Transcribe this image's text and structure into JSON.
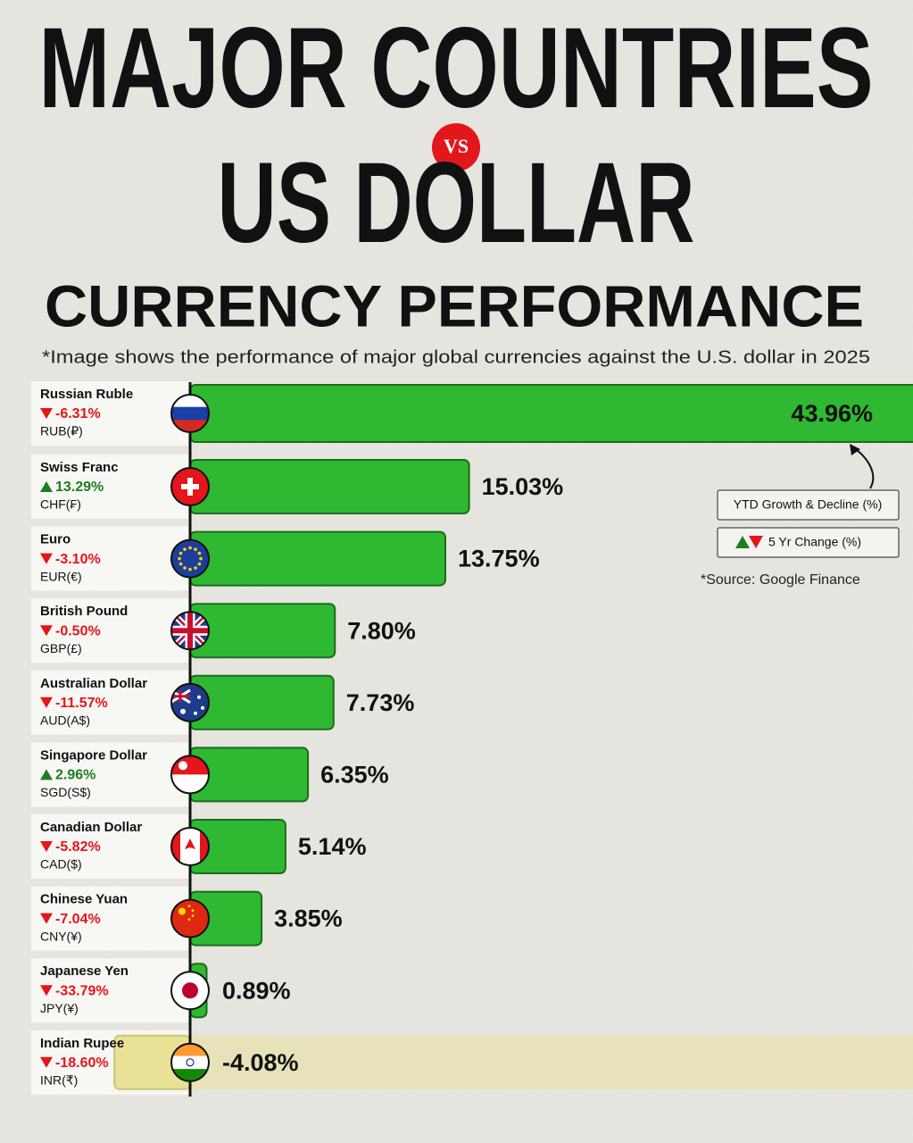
{
  "chart_data": {
    "type": "bar",
    "title_line1": "MAJOR COUNTRIES",
    "vs": "VS",
    "title_line2": "US DOLLAR",
    "title_line3": "CURRENCY PERFORMANCE",
    "subtitle": "*Image shows the performance of major global currencies against the U.S. dollar in 2025",
    "source": "*Source: Google Finance",
    "categories": [
      "Russian Ruble",
      "Swiss Franc",
      "Euro",
      "British Pound",
      "Australian Dollar",
      "Singapore Dollar",
      "Canadian Dollar",
      "Chinese Yuan",
      "Japanese Yen",
      "Indian Rupee"
    ],
    "codes": [
      "RUB(₽)",
      "CHF(₣)",
      "EUR(€)",
      "GBP(£)",
      "AUD(A$)",
      "SGD(S$)",
      "CAD($)",
      "CNY(¥)",
      "JPY(¥)",
      "INR(₹)"
    ],
    "series": [
      {
        "name": "YTD Growth & Decline (%)",
        "color": "#2fb832",
        "negative_color": "#e8df8c",
        "values": [
          43.96,
          15.03,
          13.75,
          7.8,
          7.73,
          6.35,
          5.14,
          3.85,
          0.89,
          -4.08
        ],
        "value_labels": [
          "43.96%",
          "15.03%",
          "13.75%",
          "7.80%",
          "7.73%",
          "6.35%",
          "5.14%",
          "3.85%",
          "0.89%",
          "-4.08%"
        ]
      },
      {
        "name": "5 Yr Change (%)",
        "up_color": "#1e7d1e",
        "down_color": "#e3161b",
        "values": [
          -6.31,
          13.29,
          -3.1,
          -0.5,
          -11.57,
          2.96,
          -5.82,
          -7.04,
          -33.79,
          -18.6
        ],
        "value_labels": [
          "-6.31%",
          "13.29%",
          "-3.10%",
          "-0.50%",
          "-11.57%",
          "2.96%",
          "-5.82%",
          "-7.04%",
          "-33.79%",
          "-18.60%"
        ]
      }
    ]
  }
}
